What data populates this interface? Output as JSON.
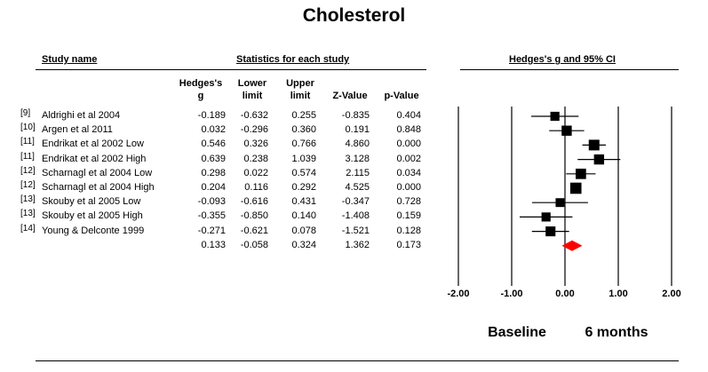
{
  "title": "Cholesterol",
  "headers": {
    "study_name": "Study name",
    "statistics": "Statistics for each study",
    "plot": "Hedges's g and 95% CI",
    "hedges_line1": "Hedges's",
    "hedges_line2": "g",
    "lower_line1": "Lower",
    "lower_line2": "limit",
    "upper_line1": "Upper",
    "upper_line2": "limit",
    "zvalue": "Z-Value",
    "pvalue": "p-Value"
  },
  "chart_data": {
    "type": "forest",
    "x_ticks": [
      "-2.00",
      "-1.00",
      "0.00",
      "1.00",
      "2.00"
    ],
    "xlim": [
      -2,
      2
    ],
    "x_labels": {
      "left": "Baseline",
      "right": "6 months"
    },
    "studies": [
      {
        "ref": "[9]",
        "name": "Aldrighi et al 2004",
        "g": -0.189,
        "lower": -0.632,
        "upper": 0.255,
        "z": -0.835,
        "p": 0.404,
        "g_text": "-0.189",
        "lower_text": "-0.632",
        "upper_text": "0.255",
        "z_text": "-0.835",
        "p_text": "0.404",
        "weight": 0.7
      },
      {
        "ref": "[10]",
        "name": "Argen et al 2011",
        "g": 0.032,
        "lower": -0.296,
        "upper": 0.36,
        "z": 0.191,
        "p": 0.848,
        "g_text": "0.032",
        "lower_text": "-0.296",
        "upper_text": "0.360",
        "z_text": "0.191",
        "p_text": "0.848",
        "weight": 0.9
      },
      {
        "ref": "[11]",
        "name": "Endrikat et al 2002 Low",
        "g": 0.546,
        "lower": 0.326,
        "upper": 0.766,
        "z": 4.86,
        "p": 0.0,
        "g_text": "0.546",
        "lower_text": "0.326",
        "upper_text": "0.766",
        "z_text": "4.860",
        "p_text": "0.000",
        "weight": 1.0
      },
      {
        "ref": "[11]",
        "name": "Endrikat et al 2002 High",
        "g": 0.639,
        "lower": 0.238,
        "upper": 1.039,
        "z": 3.128,
        "p": 0.002,
        "g_text": "0.639",
        "lower_text": "0.238",
        "upper_text": "1.039",
        "z_text": "3.128",
        "p_text": "0.002",
        "weight": 0.9
      },
      {
        "ref": "[12]",
        "name": "Scharnagl et al 2004 Low",
        "g": 0.298,
        "lower": 0.022,
        "upper": 0.574,
        "z": 2.115,
        "p": 0.034,
        "g_text": "0.298",
        "lower_text": "0.022",
        "upper_text": "0.574",
        "z_text": "2.115",
        "p_text": "0.034",
        "weight": 0.95
      },
      {
        "ref": "[12]",
        "name": "Scharnagl et al 2004 High",
        "g": 0.204,
        "lower": 0.116,
        "upper": 0.292,
        "z": 4.525,
        "p": 0.0,
        "g_text": "0.204",
        "lower_text": "0.116",
        "upper_text": "0.292",
        "z_text": "4.525",
        "p_text": "0.000",
        "weight": 1.1
      },
      {
        "ref": "[13]",
        "name": "Skouby et al 2005 Low",
        "g": -0.093,
        "lower": -0.616,
        "upper": 0.431,
        "z": -0.347,
        "p": 0.728,
        "g_text": "-0.093",
        "lower_text": "-0.616",
        "upper_text": "0.431",
        "z_text": "-0.347",
        "p_text": "0.728",
        "weight": 0.65
      },
      {
        "ref": "[13]",
        "name": "Skouby et al 2005 High",
        "g": -0.355,
        "lower": -0.85,
        "upper": 0.14,
        "z": -1.408,
        "p": 0.159,
        "g_text": "-0.355",
        "lower_text": "-0.850",
        "upper_text": "0.140",
        "z_text": "-1.408",
        "p_text": "0.159",
        "weight": 0.7
      },
      {
        "ref": "[14]",
        "name": "Young & Delconte 1999",
        "g": -0.271,
        "lower": -0.621,
        "upper": 0.078,
        "z": -1.521,
        "p": 0.128,
        "g_text": "-0.271",
        "lower_text": "-0.621",
        "upper_text": "0.078",
        "z_text": "-1.521",
        "p_text": "0.128",
        "weight": 0.85
      }
    ],
    "summary": {
      "g": 0.133,
      "lower": -0.058,
      "upper": 0.324,
      "z": 1.362,
      "p": 0.173,
      "g_text": "0.133",
      "lower_text": "-0.058",
      "upper_text": "0.324",
      "z_text": "1.362",
      "p_text": "0.173"
    },
    "summary_color": "#ff0000"
  }
}
